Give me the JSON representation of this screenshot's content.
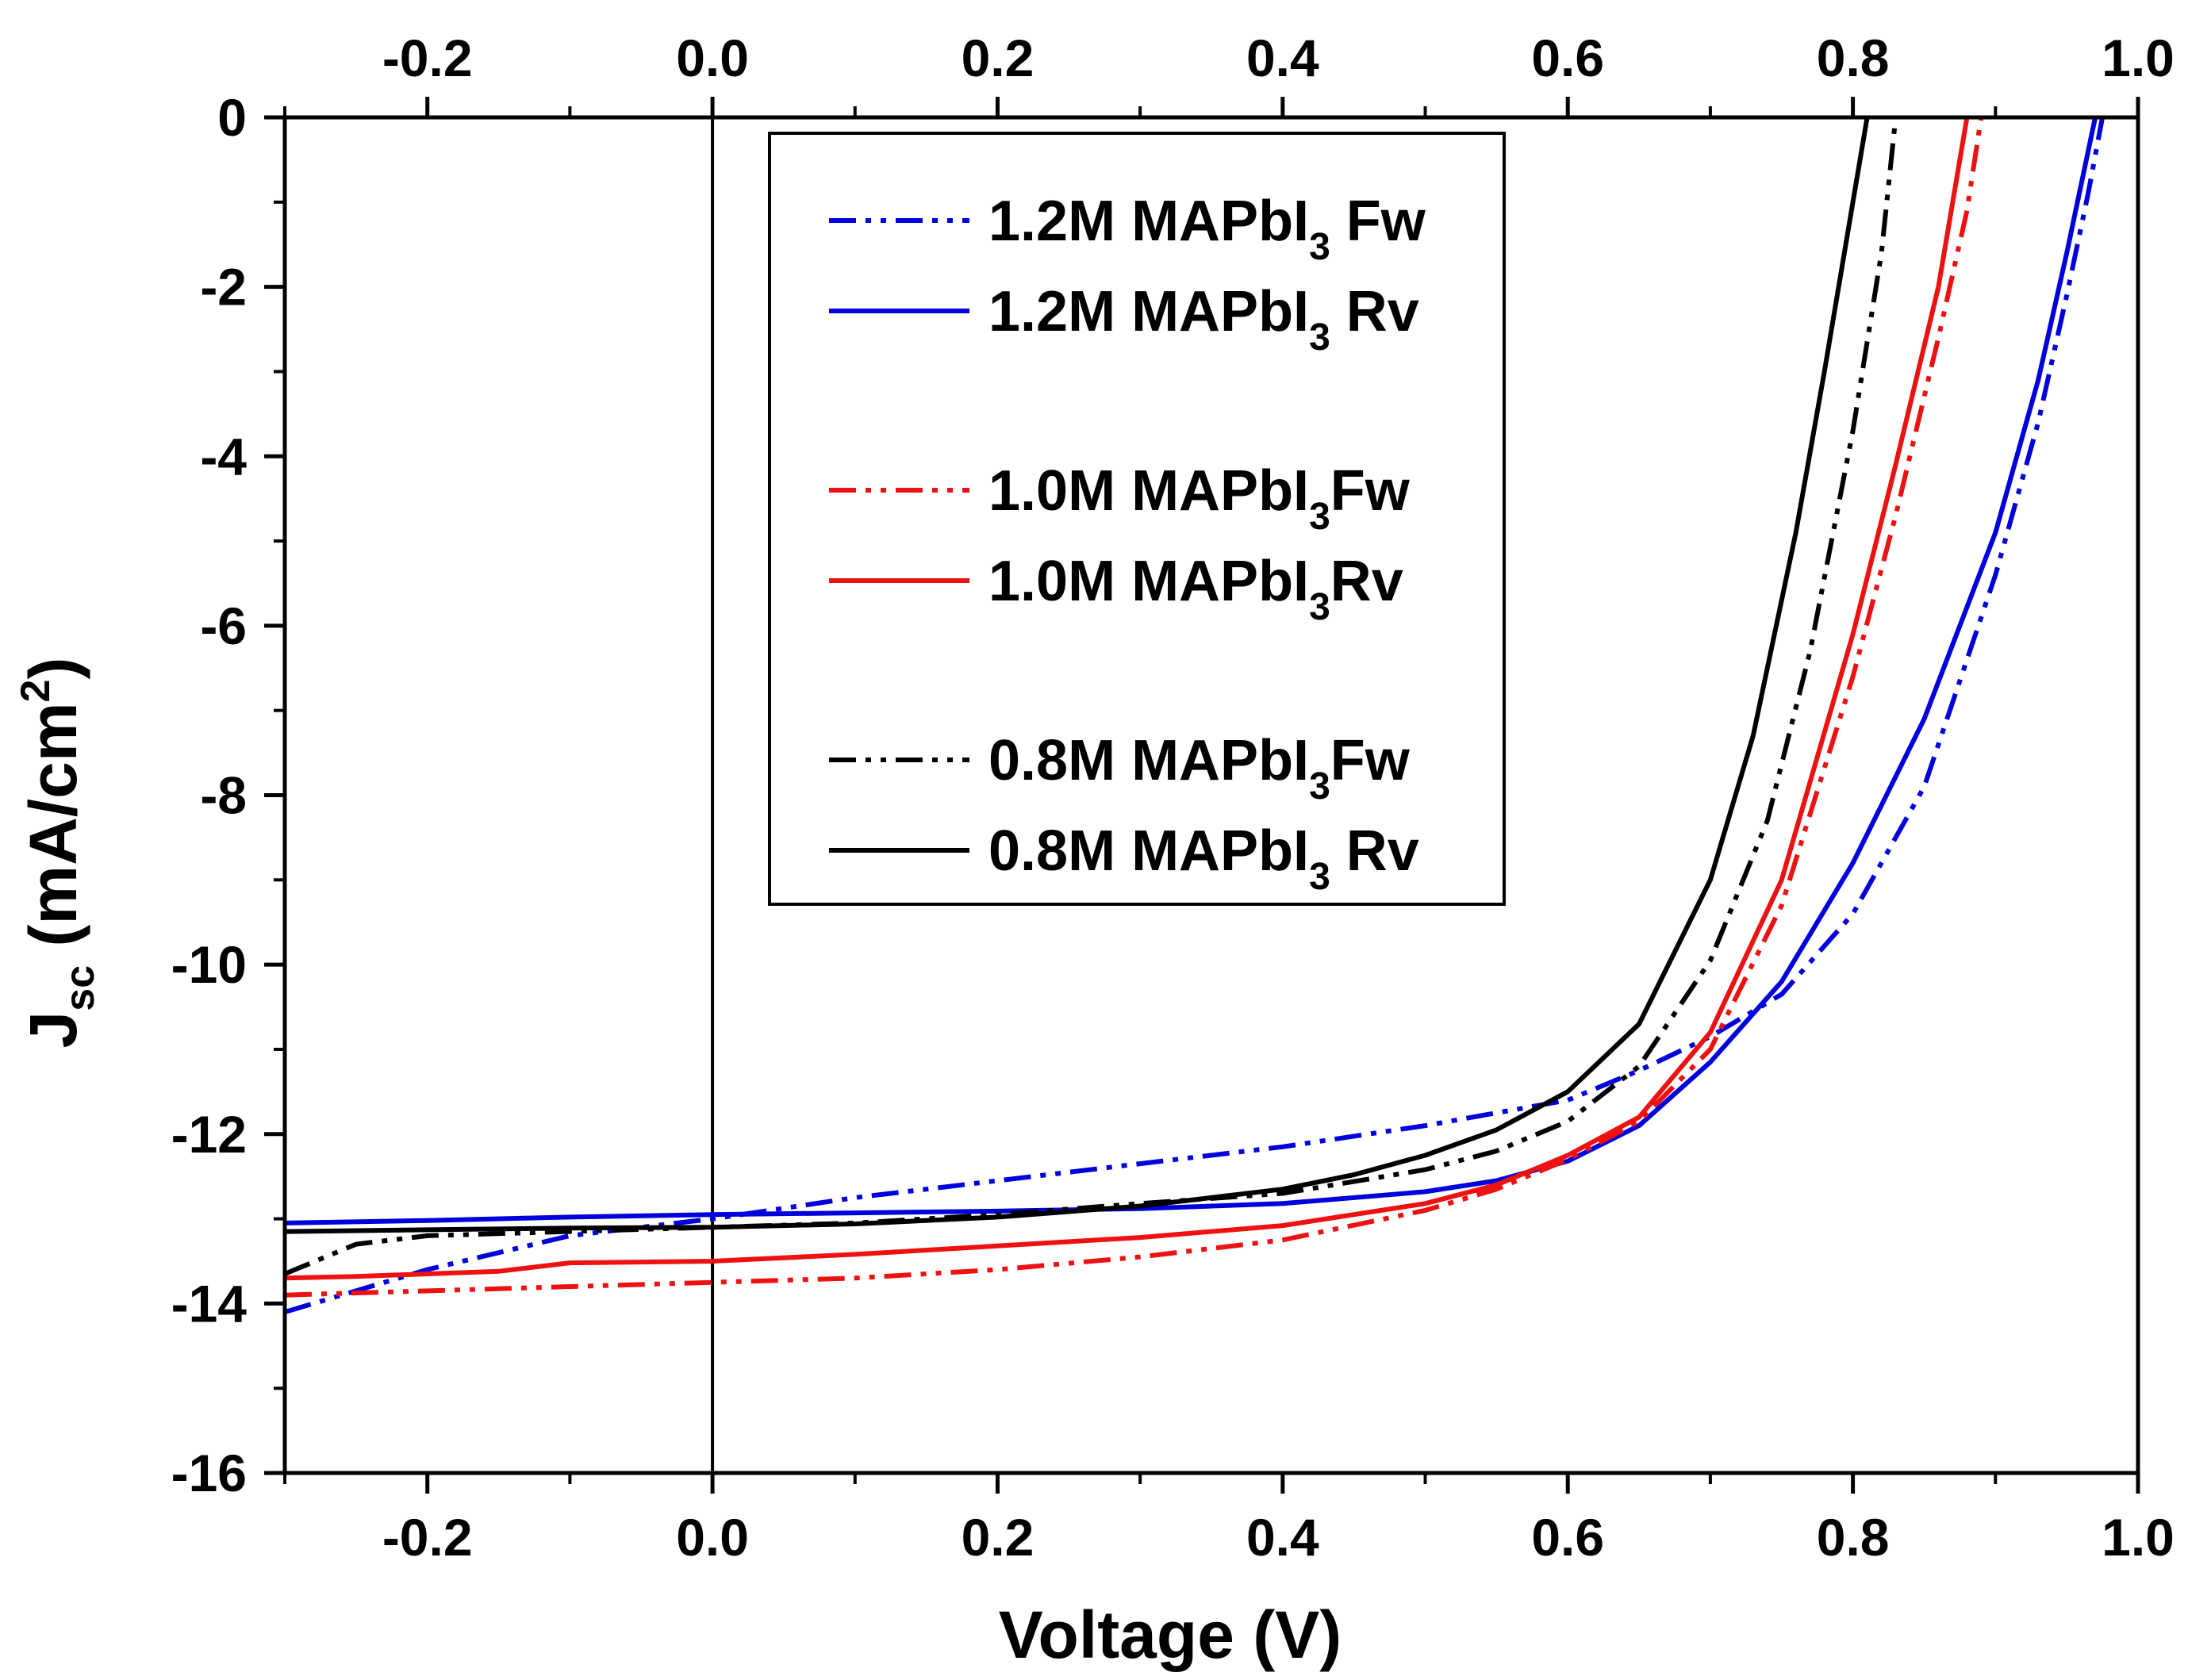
{
  "chart_data": {
    "type": "line",
    "title": "",
    "xlabel": "Voltage (V)",
    "ylabel": {
      "main": "J",
      "sub": "sc",
      "unit_open": " (mA/cm",
      "unit_sup": "2",
      "unit_close": ")"
    },
    "xlim": [
      -0.3,
      1.0
    ],
    "ylim": [
      -16,
      0
    ],
    "x_ticks": [
      -0.2,
      0.0,
      0.2,
      0.4,
      0.6,
      0.8,
      1.0
    ],
    "x_tick_labels": [
      "-0.2",
      "0.0",
      "0.2",
      "0.4",
      "0.6",
      "0.8",
      "1.0"
    ],
    "y_ticks": [
      0,
      -2,
      -4,
      -6,
      -8,
      -10,
      -12,
      -14,
      -16
    ],
    "y_tick_labels": [
      "0",
      "-2",
      "-4",
      "-6",
      "-8",
      "-10",
      "-12",
      "-14",
      "-16"
    ],
    "secondary_x_axis": "top",
    "reference_line_x": 0.0,
    "legend_position": "top-center",
    "series": [
      {
        "id": "s12fw",
        "pre": "1.2M MAPbI",
        "sub": "3",
        "post": " Fw",
        "color": "#0000dd",
        "dash": "dashdotdot",
        "x": [
          -0.3,
          -0.2,
          -0.1,
          0.0,
          0.1,
          0.2,
          0.3,
          0.4,
          0.5,
          0.6,
          0.65,
          0.7,
          0.75,
          0.8,
          0.85,
          0.9,
          0.93,
          0.95,
          0.965,
          0.975
        ],
        "y": [
          -14.1,
          -13.6,
          -13.2,
          -13.0,
          -12.75,
          -12.55,
          -12.35,
          -12.15,
          -11.9,
          -11.6,
          -11.25,
          -10.85,
          -10.35,
          -9.4,
          -7.9,
          -5.4,
          -3.6,
          -2.1,
          -0.9,
          0.0
        ]
      },
      {
        "id": "s12rv",
        "pre": "1.2M MAPbI",
        "sub": "3",
        "post": " Rv",
        "color": "#0000dd",
        "dash": "solid",
        "x": [
          -0.3,
          -0.2,
          -0.1,
          0.0,
          0.1,
          0.2,
          0.3,
          0.4,
          0.5,
          0.55,
          0.6,
          0.65,
          0.7,
          0.75,
          0.8,
          0.85,
          0.9,
          0.93,
          0.95,
          0.97
        ],
        "y": [
          -13.05,
          -13.02,
          -12.98,
          -12.95,
          -12.93,
          -12.91,
          -12.88,
          -12.82,
          -12.68,
          -12.55,
          -12.32,
          -11.9,
          -11.15,
          -10.2,
          -8.8,
          -7.1,
          -4.9,
          -3.1,
          -1.6,
          0.0
        ]
      },
      {
        "id": "s10fw",
        "pre": "1.0M MAPbI",
        "sub": "3",
        "post": "Fw",
        "color": "#ee1111",
        "dash": "dashdotdot",
        "x": [
          -0.3,
          -0.2,
          -0.1,
          0.0,
          0.1,
          0.2,
          0.3,
          0.4,
          0.5,
          0.55,
          0.6,
          0.65,
          0.7,
          0.75,
          0.8,
          0.83,
          0.86,
          0.88,
          0.89
        ],
        "y": [
          -13.9,
          -13.85,
          -13.8,
          -13.75,
          -13.7,
          -13.6,
          -13.45,
          -13.25,
          -12.9,
          -12.65,
          -12.3,
          -11.85,
          -11.0,
          -9.3,
          -6.6,
          -4.7,
          -2.6,
          -1.1,
          0.0
        ]
      },
      {
        "id": "s10rv",
        "pre": "1.0M MAPbI",
        "sub": "3",
        "post": "Rv",
        "color": "#ee1111",
        "dash": "solid",
        "x": [
          -0.3,
          -0.25,
          -0.15,
          -0.1,
          0.0,
          0.1,
          0.2,
          0.3,
          0.4,
          0.5,
          0.55,
          0.6,
          0.65,
          0.7,
          0.75,
          0.8,
          0.83,
          0.86,
          0.88
        ],
        "y": [
          -13.7,
          -13.68,
          -13.62,
          -13.52,
          -13.5,
          -13.42,
          -13.32,
          -13.22,
          -13.08,
          -12.82,
          -12.6,
          -12.25,
          -11.8,
          -10.8,
          -9.0,
          -6.1,
          -4.1,
          -2.0,
          0.0
        ]
      },
      {
        "id": "s08fw",
        "pre": "0.8M MAPbI",
        "sub": "3",
        "post": "Fw",
        "color": "#000000",
        "dash": "dashdotdot",
        "x": [
          -0.3,
          -0.25,
          -0.2,
          -0.1,
          0.0,
          0.1,
          0.2,
          0.3,
          0.4,
          0.5,
          0.55,
          0.6,
          0.65,
          0.7,
          0.74,
          0.77,
          0.8,
          0.82,
          0.83
        ],
        "y": [
          -13.65,
          -13.3,
          -13.2,
          -13.15,
          -13.1,
          -13.05,
          -12.95,
          -12.82,
          -12.7,
          -12.42,
          -12.2,
          -11.85,
          -11.2,
          -9.95,
          -8.3,
          -6.3,
          -3.7,
          -1.6,
          0.0
        ]
      },
      {
        "id": "s08rv",
        "pre": "0.8M MAPbI",
        "sub": "3",
        "post": " Rv",
        "color": "#000000",
        "dash": "solid",
        "x": [
          -0.3,
          -0.2,
          -0.1,
          0.0,
          0.1,
          0.2,
          0.3,
          0.4,
          0.45,
          0.5,
          0.55,
          0.6,
          0.65,
          0.7,
          0.73,
          0.76,
          0.78,
          0.8,
          0.81
        ],
        "y": [
          -13.15,
          -13.13,
          -13.11,
          -13.1,
          -13.06,
          -12.98,
          -12.85,
          -12.65,
          -12.48,
          -12.25,
          -11.95,
          -11.5,
          -10.7,
          -9.0,
          -7.3,
          -4.9,
          -3.0,
          -1.0,
          0.0
        ]
      }
    ]
  }
}
